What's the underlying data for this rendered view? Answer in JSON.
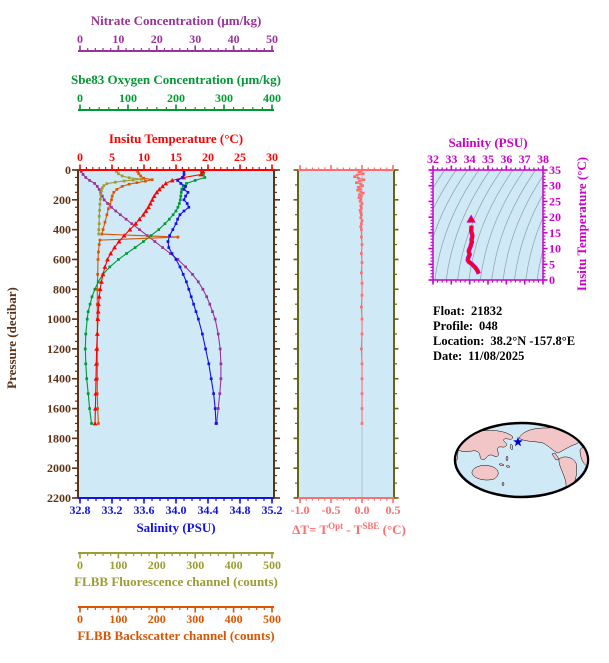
{
  "figure": {
    "background": "#ffffff",
    "panel_background": "#cfe9f6"
  },
  "float_info": {
    "float_label": "Float:",
    "float_value": "21832",
    "profile_label": "Profile:",
    "profile_value": "048",
    "location_label": "Location:",
    "location_value": "38.2°N  -157.8°E",
    "date_label": "Date:",
    "date_value": "11/08/2025"
  },
  "map": {
    "ocean_color": "#cfe9f7",
    "land_color": "#f2c6c6",
    "outline_color": "#000000",
    "star_color": "#0000cc",
    "star_location": "38.2°N -157.8°E"
  },
  "chart_data": [
    {
      "id": "profile-plot",
      "type": "line",
      "background": "#cfe9f6",
      "y_axis": {
        "label": "Pressure (decibar)",
        "min": 0,
        "max": 2200,
        "minor_step": 50,
        "tick_labels": [
          "0",
          "200",
          "400",
          "600",
          "800",
          "1000",
          "1200",
          "1400",
          "1600",
          "1800",
          "2000",
          "2200"
        ],
        "color": "#5C3317"
      },
      "x_axes": [
        {
          "id": "nitrate",
          "title": "Nitrate Concentration (μm/kg)",
          "min": 0,
          "max": 50,
          "minor_step": 2,
          "tick_labels": [
            "0",
            "10",
            "20",
            "30",
            "40",
            "50"
          ],
          "color": "#993399"
        },
        {
          "id": "oxygen",
          "title": "Sbe83 Oxygen Concentration (μm/kg)",
          "min": 0,
          "max": 400,
          "minor_step": 20,
          "tick_labels": [
            "0",
            "100",
            "200",
            "300",
            "400"
          ],
          "color": "#009933"
        },
        {
          "id": "temperature",
          "title": "Insitu Temperature (°C)",
          "min": 0,
          "max": 30,
          "minor_step": 1,
          "tick_labels": [
            "0",
            "5",
            "10",
            "15",
            "20",
            "25",
            "30"
          ],
          "color": "#ff0000"
        },
        {
          "id": "salinity",
          "title": "Salinity (PSU)",
          "min": 32.8,
          "max": 35.2,
          "minor_step": 0.1,
          "tick_labels": [
            "32.8",
            "33.2",
            "33.6",
            "34.0",
            "34.4",
            "34.8",
            "35.2"
          ],
          "color": "#1111ee"
        },
        {
          "id": "fluorescence",
          "title": "FLBB Fluorescence channel (counts)",
          "min": 0,
          "max": 500,
          "minor_step": 20,
          "tick_labels": [
            "0",
            "100",
            "200",
            "300",
            "400",
            "500"
          ],
          "color": "#9C9C33"
        },
        {
          "id": "backscatter",
          "title": "FLBB Backscatter channel (counts)",
          "min": 0,
          "max": 500,
          "minor_step": 20,
          "tick_labels": [
            "0",
            "100",
            "200",
            "300",
            "400",
            "500"
          ],
          "color": "#DD5500"
        }
      ],
      "series": [
        {
          "name": "nitrate",
          "axis": "nitrate",
          "color": "#993399",
          "marker": "square",
          "pressure": [
            10,
            30,
            50,
            70,
            90,
            110,
            130,
            150,
            175,
            200,
            225,
            250,
            275,
            300,
            330,
            360,
            400,
            440,
            480,
            520,
            560,
            600,
            650,
            700,
            750,
            800,
            850,
            900,
            950,
            1000,
            1100,
            1200,
            1300,
            1400,
            1500,
            1600,
            1700
          ],
          "values": [
            0.3,
            0.8,
            1.5,
            2.5,
            3.8,
            4.5,
            5.0,
            5.4,
            5.8,
            6.3,
            7.2,
            8.2,
            9.3,
            10.5,
            12.0,
            13.5,
            15.5,
            17.5,
            19.5,
            21.5,
            23.5,
            25.5,
            27.5,
            29.3,
            30.8,
            32.0,
            33.0,
            33.8,
            34.5,
            35.2,
            36.0,
            36.5,
            36.7,
            36.7,
            36.4,
            36.0,
            35.6
          ]
        },
        {
          "name": "fluorescence",
          "axis": "fluorescence",
          "color": "#9C9C33",
          "marker": "square",
          "pressure": [
            10,
            25,
            40,
            52,
            62,
            68,
            74,
            82,
            92,
            105,
            120,
            140,
            165,
            195,
            230,
            270,
            310,
            360,
            400,
            430
          ],
          "values": [
            95,
            100,
            110,
            128,
            160,
            138,
            115,
            92,
            70,
            62,
            58,
            56,
            54,
            53,
            52,
            51,
            50,
            50,
            49,
            49
          ]
        },
        {
          "name": "backscatter",
          "axis": "backscatter",
          "color": "#DD5500",
          "marker": "square",
          "pressure": [
            10,
            25,
            40,
            55,
            65,
            75,
            85,
            95,
            110,
            130,
            150,
            175,
            200,
            230,
            260,
            300,
            350,
            400,
            430,
            450,
            470,
            500,
            550,
            600,
            700,
            800,
            900,
            1000,
            1100,
            1200,
            1300,
            1400,
            1500,
            1600,
            1700
          ],
          "values": [
            150,
            153,
            158,
            166,
            188,
            170,
            148,
            128,
            110,
            96,
            88,
            84,
            82,
            78,
            74,
            70,
            65,
            60,
            57,
            255,
            52,
            50,
            48,
            47,
            46,
            45,
            45,
            45,
            45,
            45,
            45,
            45,
            45,
            46,
            48
          ]
        },
        {
          "name": "oxygen",
          "axis": "oxygen",
          "color": "#009933",
          "marker": "square",
          "pressure": [
            10,
            30,
            50,
            70,
            90,
            110,
            130,
            150,
            175,
            200,
            225,
            250,
            275,
            300,
            330,
            360,
            400,
            440,
            480,
            520,
            560,
            600,
            650,
            700,
            750,
            800,
            850,
            900,
            950,
            1000,
            1100,
            1200,
            1300,
            1400,
            1500,
            1600,
            1700
          ],
          "values": [
            253,
            257,
            260,
            240,
            222,
            215,
            212,
            211,
            210,
            209,
            207,
            204,
            200,
            194,
            186,
            177,
            164,
            148,
            132,
            115,
            97,
            80,
            62,
            48,
            38,
            31,
            25,
            21,
            17,
            15,
            12,
            11,
            12,
            14,
            17,
            20,
            24
          ]
        },
        {
          "name": "insitu-temperature",
          "axis": "temperature",
          "color": "#ff0000",
          "marker": "triangle",
          "pressure": [
            10,
            30,
            50,
            70,
            90,
            110,
            130,
            150,
            175,
            200,
            225,
            250,
            275,
            300,
            330,
            360,
            400,
            440,
            480,
            520,
            560,
            600,
            650,
            700,
            750,
            800,
            850,
            900,
            950,
            1000,
            1100,
            1200,
            1300,
            1400,
            1500,
            1600,
            1700
          ],
          "values": [
            19.2,
            18.9,
            16.2,
            14.4,
            13.4,
            12.9,
            12.4,
            12.0,
            11.6,
            11.3,
            11.0,
            10.7,
            10.3,
            9.9,
            9.3,
            8.7,
            7.8,
            6.9,
            6.1,
            5.4,
            4.8,
            4.3,
            3.9,
            3.6,
            3.35,
            3.15,
            3.0,
            2.9,
            2.85,
            2.8,
            2.7,
            2.6,
            2.55,
            2.5,
            2.45,
            2.4,
            2.35
          ]
        },
        {
          "name": "salinity",
          "axis": "salinity",
          "color": "#1111ee",
          "marker": "square",
          "pressure": [
            10,
            30,
            50,
            70,
            90,
            110,
            130,
            150,
            175,
            200,
            225,
            250,
            275,
            300,
            330,
            360,
            400,
            440,
            480,
            520,
            560,
            600,
            650,
            700,
            750,
            800,
            850,
            900,
            950,
            1000,
            1100,
            1200,
            1300,
            1400,
            1500,
            1600,
            1700
          ],
          "values": [
            34.1,
            34.1,
            34.08,
            34.02,
            34.06,
            34.12,
            34.1,
            34.15,
            34.12,
            34.1,
            34.14,
            34.16,
            34.1,
            34.05,
            34.02,
            34.0,
            33.96,
            33.92,
            33.9,
            33.91,
            33.95,
            34.0,
            34.05,
            34.09,
            34.13,
            34.16,
            34.19,
            34.22,
            34.25,
            34.28,
            34.33,
            34.37,
            34.41,
            34.44,
            34.47,
            34.49,
            34.5
          ]
        }
      ]
    },
    {
      "id": "delta-plot",
      "type": "line",
      "background": "#cfe9f6",
      "x_axis": {
        "title_parts": {
          "prefix": "ΔT= T",
          "sup1": "Opt",
          "mid": " - T",
          "sup2": "SBE",
          "suffix": " (°C)"
        },
        "min": -1.0,
        "max": 0.5,
        "minor_step": 0.1,
        "tick_labels": [
          "-1.0",
          "-0.5",
          "0.0",
          "0.5"
        ],
        "color": "#FF6E6E"
      },
      "y_axis": {
        "min": 0,
        "max": 2200,
        "minor_step": 100,
        "color": "#666611"
      },
      "zero_line_color": "#afc3cd",
      "series": {
        "name": "delta-temperature",
        "color": "#FF6E6E",
        "marker": "square",
        "pressure": [
          5,
          15,
          25,
          35,
          45,
          55,
          65,
          75,
          85,
          95,
          105,
          115,
          125,
          135,
          145,
          155,
          165,
          175,
          185,
          195,
          210,
          225,
          240,
          255,
          270,
          285,
          300,
          320,
          340,
          360,
          380,
          400,
          450,
          500,
          560,
          620,
          690,
          760,
          840,
          920,
          1000,
          1100,
          1200,
          1300,
          1400,
          1500,
          1600,
          1700
        ],
        "values": [
          -0.02,
          -0.05,
          0.02,
          -0.08,
          -0.12,
          -0.06,
          0.03,
          -0.04,
          -0.09,
          -0.02,
          0.01,
          -0.06,
          -0.03,
          -0.07,
          -0.02,
          0.02,
          -0.04,
          -0.01,
          -0.05,
          -0.02,
          -0.03,
          0.0,
          -0.02,
          -0.01,
          -0.03,
          -0.02,
          -0.01,
          -0.02,
          0.0,
          -0.01,
          -0.02,
          -0.01,
          -0.01,
          0.0,
          -0.01,
          0.0,
          -0.01,
          0.0,
          0.0,
          -0.01,
          0.0,
          0.0,
          -0.01,
          0.0,
          0.0,
          0.0,
          0.0,
          0.0
        ]
      }
    },
    {
      "id": "ts-diagram",
      "type": "line",
      "background": "#cfe9f6",
      "contour_color": "#8fa0a8",
      "x_axis": {
        "title": "Salinity (PSU)",
        "min": 32,
        "max": 38,
        "minor_step": 0.25,
        "tick_labels": [
          "32",
          "33",
          "34",
          "35",
          "36",
          "37",
          "38"
        ],
        "color": "#CC00CC"
      },
      "y_axis": {
        "title": "Insitu Temperature (°C)",
        "min": 0,
        "max": 35,
        "minor_step": 1,
        "tick_labels": [
          "0",
          "5",
          "10",
          "15",
          "20",
          "25",
          "30",
          "35"
        ],
        "color": "#CC00CC"
      },
      "series": {
        "name": "ts-curve",
        "color": "#FF0000",
        "outline": "#CC00CC",
        "salinity": [
          34.5,
          34.46,
          34.42,
          34.37,
          34.3,
          34.22,
          34.13,
          34.04,
          33.95,
          33.9,
          33.91,
          33.95,
          34.0,
          33.97,
          33.95,
          34.0,
          34.05,
          34.08,
          34.12,
          34.1,
          34.13,
          34.15,
          34.11,
          34.08,
          34.1,
          34.09
        ],
        "temperature": [
          2.0,
          2.5,
          3.0,
          3.5,
          4.0,
          4.5,
          5.0,
          5.4,
          5.8,
          6.3,
          6.9,
          7.5,
          8.1,
          8.7,
          9.3,
          10.0,
          10.7,
          11.4,
          12.1,
          12.8,
          13.5,
          14.2,
          15.0,
          15.8,
          16.6,
          17.3
        ]
      },
      "surface_marker": {
        "salinity": 34.08,
        "temperature": 19.3,
        "color": "#FF0000"
      }
    }
  ]
}
